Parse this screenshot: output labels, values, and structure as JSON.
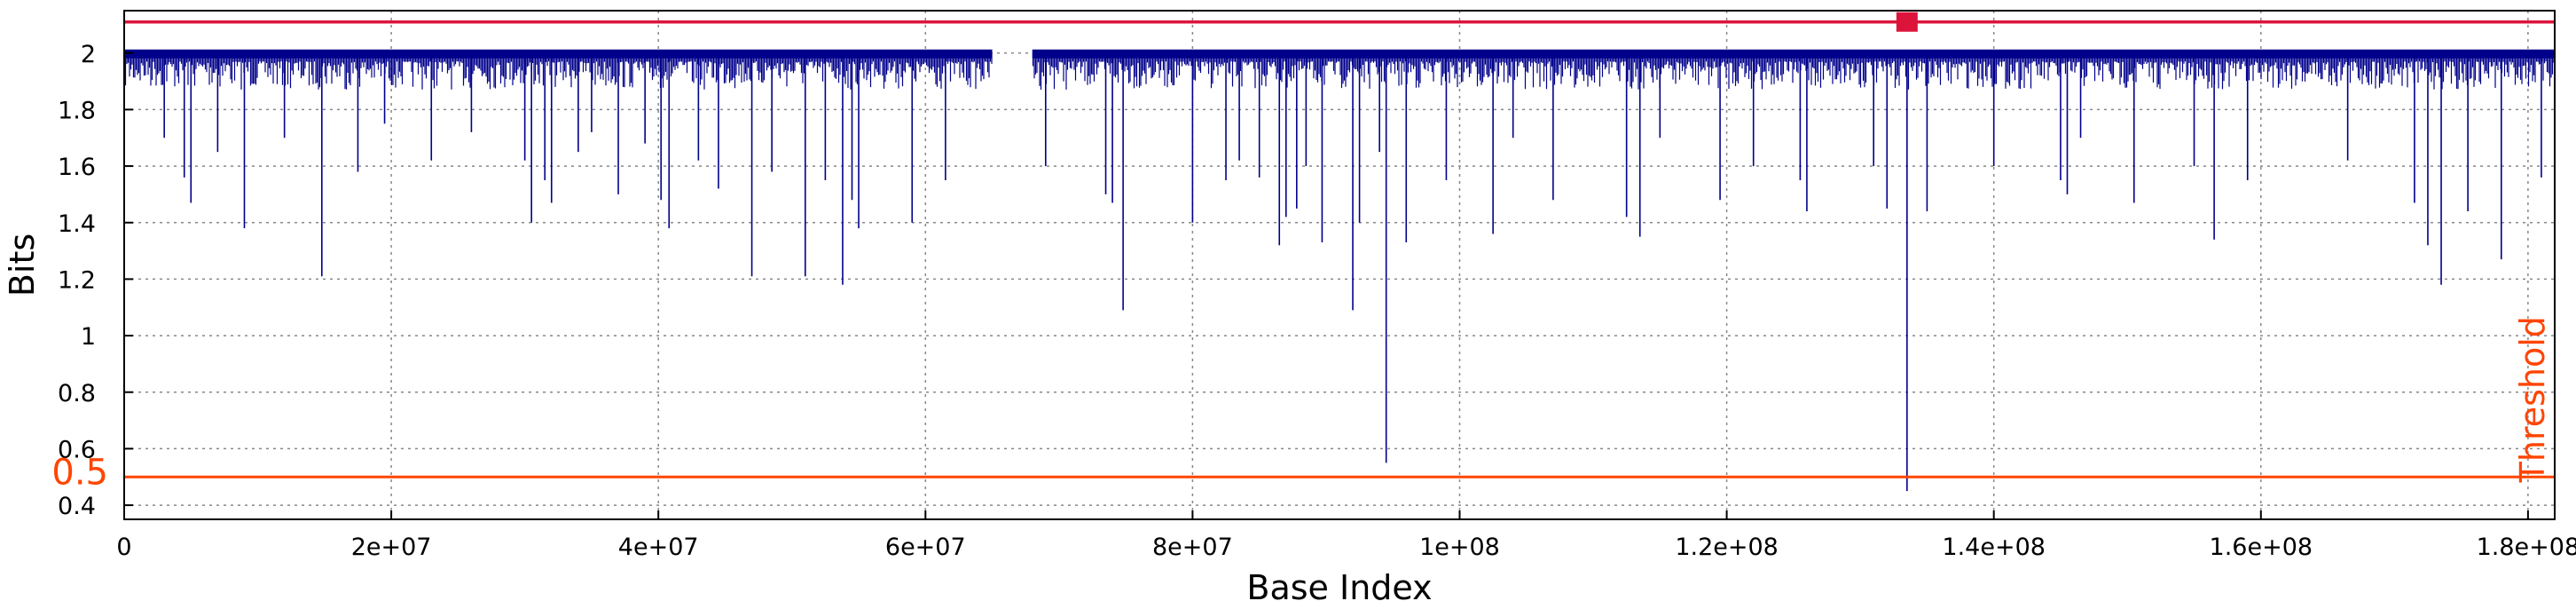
{
  "chart_data": {
    "type": "line",
    "title": "",
    "xlabel": "Base Index",
    "ylabel": "Bits",
    "xlim": [
      0,
      182000000
    ],
    "ylim": [
      0.35,
      2.15
    ],
    "grid": true,
    "x_ticks": [
      {
        "value": 0,
        "label": "0"
      },
      {
        "value": 20000000,
        "label": "2e+07"
      },
      {
        "value": 40000000,
        "label": "4e+07"
      },
      {
        "value": 60000000,
        "label": "6e+07"
      },
      {
        "value": 80000000,
        "label": "8e+07"
      },
      {
        "value": 100000000,
        "label": "1e+08"
      },
      {
        "value": 120000000,
        "label": "1.2e+08"
      },
      {
        "value": 140000000,
        "label": "1.4e+08"
      },
      {
        "value": 160000000,
        "label": "1.6e+08"
      },
      {
        "value": 180000000,
        "label": "1.8e+08"
      }
    ],
    "y_ticks": [
      {
        "value": 0.4,
        "label": "0.4"
      },
      {
        "value": 0.6,
        "label": "0.6"
      },
      {
        "value": 0.8,
        "label": "0.8"
      },
      {
        "value": 1.0,
        "label": "1"
      },
      {
        "value": 1.2,
        "label": "1.2"
      },
      {
        "value": 1.4,
        "label": "1.4"
      },
      {
        "value": 1.6,
        "label": "1.6"
      },
      {
        "value": 1.8,
        "label": "1.8"
      },
      {
        "value": 2.0,
        "label": "2"
      }
    ],
    "series": [
      {
        "color": "#00008b",
        "baseline": 2.0,
        "gap": [
          65000000,
          68000000
        ],
        "dips": [
          [
            3000000,
            1.7
          ],
          [
            4500000,
            1.56
          ],
          [
            5000000,
            1.47
          ],
          [
            7000000,
            1.65
          ],
          [
            9000000,
            1.38
          ],
          [
            12000000,
            1.7
          ],
          [
            14800000,
            1.21
          ],
          [
            17500000,
            1.58
          ],
          [
            19500000,
            1.75
          ],
          [
            23000000,
            1.62
          ],
          [
            26000000,
            1.72
          ],
          [
            30000000,
            1.62
          ],
          [
            30500000,
            1.4
          ],
          [
            31500000,
            1.55
          ],
          [
            32000000,
            1.47
          ],
          [
            34000000,
            1.65
          ],
          [
            35000000,
            1.72
          ],
          [
            37000000,
            1.5
          ],
          [
            39000000,
            1.68
          ],
          [
            40200000,
            1.48
          ],
          [
            40800000,
            1.38
          ],
          [
            43000000,
            1.62
          ],
          [
            44500000,
            1.52
          ],
          [
            47000000,
            1.21
          ],
          [
            48500000,
            1.58
          ],
          [
            51000000,
            1.21
          ],
          [
            52500000,
            1.55
          ],
          [
            53800000,
            1.18
          ],
          [
            54500000,
            1.48
          ],
          [
            55000000,
            1.38
          ],
          [
            59000000,
            1.4
          ],
          [
            61500000,
            1.55
          ],
          [
            69000000,
            1.6
          ],
          [
            73500000,
            1.5
          ],
          [
            74000000,
            1.47
          ],
          [
            74800000,
            1.09
          ],
          [
            80000000,
            1.4
          ],
          [
            82500000,
            1.55
          ],
          [
            83500000,
            1.62
          ],
          [
            85000000,
            1.56
          ],
          [
            86500000,
            1.32
          ],
          [
            87000000,
            1.42
          ],
          [
            87800000,
            1.45
          ],
          [
            88500000,
            1.6
          ],
          [
            89700000,
            1.33
          ],
          [
            92000000,
            1.09
          ],
          [
            92500000,
            1.4
          ],
          [
            94000000,
            1.65
          ],
          [
            94500000,
            0.55
          ],
          [
            96000000,
            1.33
          ],
          [
            99000000,
            1.55
          ],
          [
            102500000,
            1.36
          ],
          [
            104000000,
            1.7
          ],
          [
            107000000,
            1.48
          ],
          [
            112500000,
            1.42
          ],
          [
            113500000,
            1.35
          ],
          [
            115000000,
            1.7
          ],
          [
            119500000,
            1.48
          ],
          [
            122000000,
            1.6
          ],
          [
            125500000,
            1.55
          ],
          [
            126000000,
            1.44
          ],
          [
            131000000,
            1.6
          ],
          [
            132000000,
            1.45
          ],
          [
            133500000,
            0.45
          ],
          [
            135000000,
            1.44
          ],
          [
            140000000,
            1.6
          ],
          [
            145000000,
            1.55
          ],
          [
            145500000,
            1.5
          ],
          [
            146500000,
            1.7
          ],
          [
            150500000,
            1.47
          ],
          [
            155000000,
            1.6
          ],
          [
            156500000,
            1.34
          ],
          [
            159000000,
            1.55
          ],
          [
            166500000,
            1.62
          ],
          [
            171500000,
            1.47
          ],
          [
            172500000,
            1.32
          ],
          [
            173500000,
            1.18
          ],
          [
            175500000,
            1.44
          ],
          [
            178000000,
            1.27
          ],
          [
            181000000,
            1.56
          ]
        ]
      }
    ],
    "threshold": {
      "value": 0.5,
      "label": "0.5",
      "name": "Threshold",
      "color": "#ff4500"
    },
    "top_line": {
      "value": 2.11,
      "color": "#dc143c"
    },
    "marker": {
      "x": 133500000,
      "y": 2.11,
      "color": "#dc143c"
    }
  }
}
